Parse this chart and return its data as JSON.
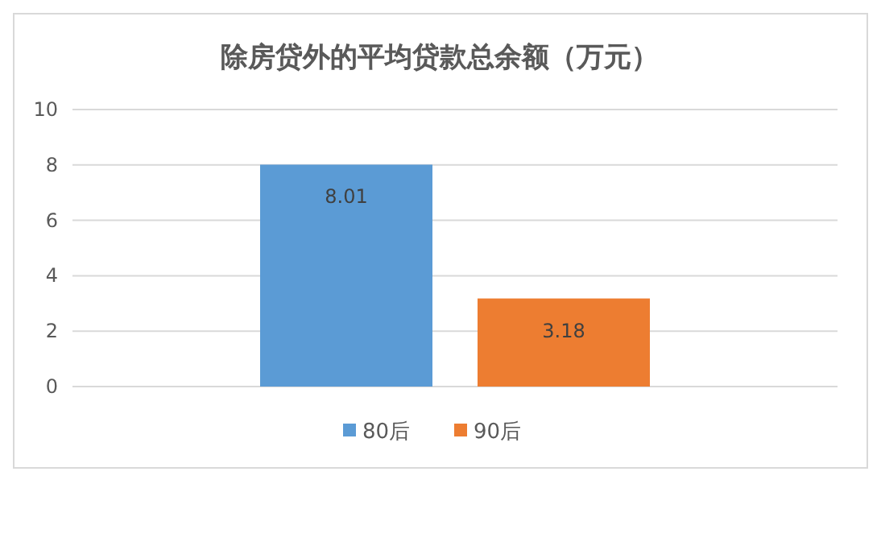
{
  "chart_data": {
    "type": "bar",
    "title": "除房贷外的平均贷款总余额（万元）",
    "categories": [
      null
    ],
    "series": [
      {
        "name": "80后",
        "color": "#5b9bd5",
        "values": [
          8.01
        ]
      },
      {
        "name": "90后",
        "color": "#ed7d31",
        "values": [
          3.18
        ]
      }
    ],
    "ylim": [
      0,
      10
    ],
    "yticks": [
      0,
      2,
      4,
      6,
      8,
      10
    ],
    "grid": "y",
    "legend": "bottom",
    "data_labels": true
  }
}
